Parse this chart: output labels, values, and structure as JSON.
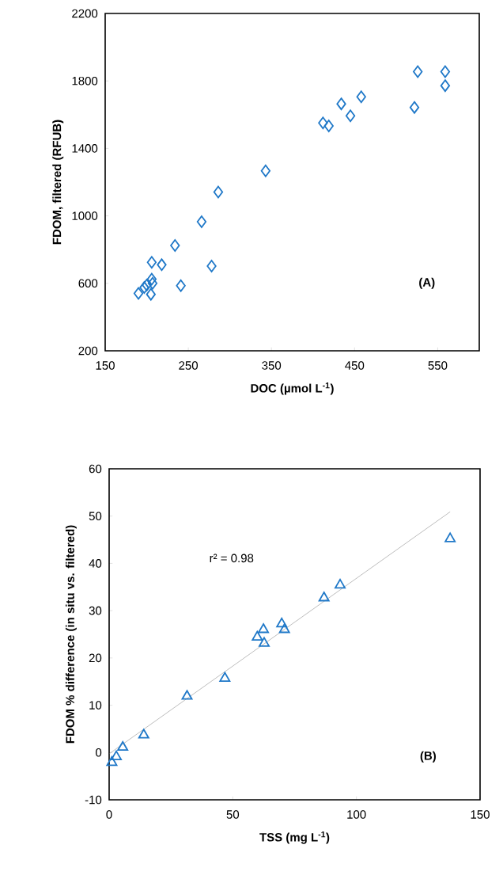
{
  "chart_data": [
    {
      "type": "scatter",
      "xlabel": "**DOC (µmol L$^{-1}$)**",
      "ylabel": "**FDOM, filtered (RFUB)**",
      "annotations": [
        "**(A)**"
      ],
      "xlim": [
        150,
        600
      ],
      "xticks": [
        150,
        250,
        350,
        450,
        550
      ],
      "ylim": [
        200,
        2200
      ],
      "yticks": [
        200,
        600,
        1000,
        1400,
        1800,
        2200
      ],
      "grid": false,
      "marker": "diamond",
      "series": [
        {
          "color": "#1f78c8",
          "x": [
            190,
            197,
            200,
            205,
            207,
            206,
            206,
            218,
            234,
            241,
            266,
            278,
            286,
            343,
            412,
            419,
            434,
            445,
            458,
            522,
            526,
            559,
            559
          ],
          "values": [
            540,
            575,
            590,
            535,
            600,
            625,
            725,
            710,
            824,
            586,
            965,
            702,
            1141,
            1267,
            1551,
            1533,
            1664,
            1593,
            1706,
            1643,
            1855,
            1855,
            1772
          ]
        }
      ]
    },
    {
      "type": "scatter",
      "xlabel": "**TSS (mg L$^{-1}$)**",
      "ylabel": "**FDOM % difference (in situ vs. filtered)**",
      "annotations": [
        "r² = 0.98",
        "**(B)**"
      ],
      "xlim": [
        0,
        150
      ],
      "xticks": [
        0,
        50,
        100,
        150
      ],
      "ylim": [
        -10,
        60
      ],
      "yticks": [
        -10,
        0,
        10,
        20,
        30,
        40,
        50,
        60
      ],
      "grid": false,
      "marker": "triangle",
      "series": [
        {
          "color": "#1f78c8",
          "x": [
            137.9,
            93.4,
            86.9,
            69.8,
            70.9,
            62.4,
            59.9,
            62.7,
            46.8,
            31.5,
            14.0,
            5.5,
            2.9,
            1.1
          ],
          "values": [
            45.2,
            35.4,
            32.7,
            27.2,
            26.0,
            26.0,
            24.4,
            23.1,
            15.7,
            11.9,
            3.7,
            1.1,
            -0.9,
            -2.1
          ]
        },
        {
          "type": "line",
          "marker": "none",
          "color": "#909090",
          "x": [
            0.2,
            137.9
          ],
          "values": [
            -0.2,
            50.9
          ]
        }
      ]
    }
  ]
}
